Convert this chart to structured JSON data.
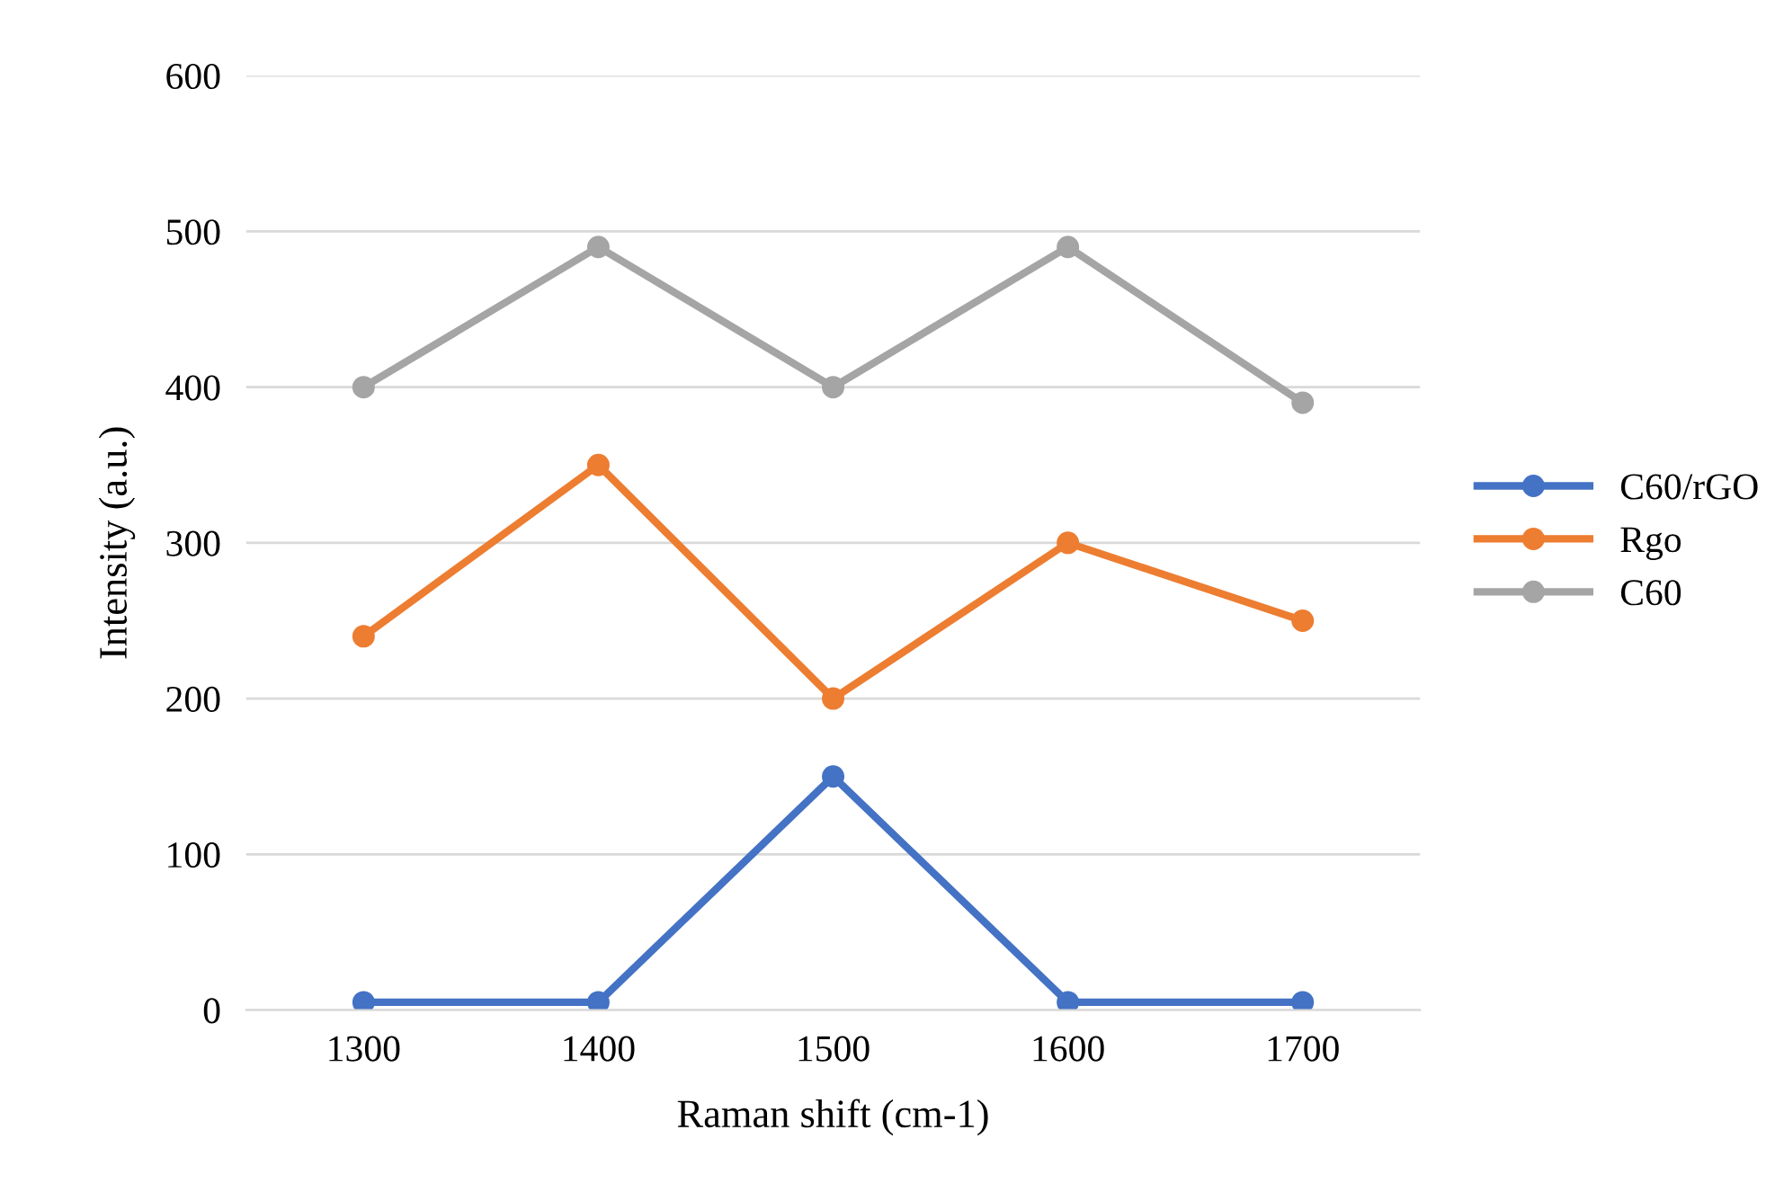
{
  "chart_data": {
    "type": "line",
    "xlabel": "Raman shift (cm-1)",
    "ylabel": "Intensity (a.u.)",
    "categories": [
      "1300",
      "1400",
      "1500",
      "1600",
      "1700"
    ],
    "series": [
      {
        "name": "C60/rGO",
        "color": "#4472c4",
        "values": [
          5,
          5,
          150,
          5,
          5
        ]
      },
      {
        "name": "Rgo",
        "color": "#ed7d31",
        "values": [
          240,
          350,
          200,
          300,
          250
        ]
      },
      {
        "name": "C60",
        "color": "#a5a5a5",
        "values": [
          400,
          490,
          400,
          490,
          390
        ]
      }
    ],
    "ylim": [
      0,
      600
    ],
    "yticks": [
      0,
      100,
      200,
      300,
      400,
      500,
      600
    ],
    "grid": "y",
    "legend": "right",
    "marker": "circle",
    "line_style": "solid"
  }
}
